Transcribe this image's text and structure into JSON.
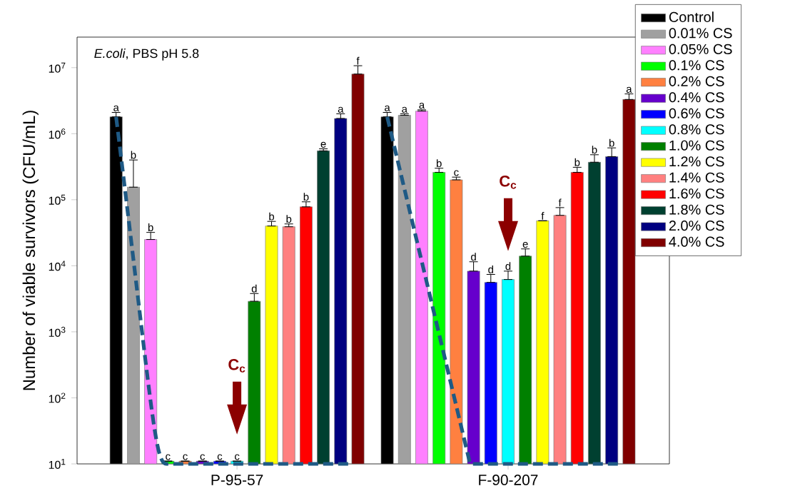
{
  "chart_data": {
    "type": "bar",
    "ylabel": "Number of viable survivors (CFU/mL)",
    "categories": [
      "P-95-57",
      "F-90-207"
    ],
    "log": "y",
    "legend": "top right",
    "ylim": [
      10,
      29000000
    ],
    "yticks": [
      {
        "value": 10,
        "label": "10$^{1}$"
      },
      {
        "value": 100,
        "label": "10$^{2}$"
      },
      {
        "value": 1000,
        "label": "10$^{3}$"
      },
      {
        "value": 10000,
        "label": "10$^{4}$"
      },
      {
        "value": 100000,
        "label": "10$^{5}$"
      },
      {
        "value": 1000000,
        "label": "10$^{6}$"
      },
      {
        "value": 10000000,
        "label": "10$^{7}$"
      }
    ],
    "annotations": [
      "*E.coli*, PBS pH 5.8",
      "C$_{c}$",
      "C$_{c}$"
    ],
    "series": [
      {
        "name": "Control",
        "color": "#000000",
        "values": [
          1800000,
          1800000
        ],
        "errors": [
          [
            1800000,
            2100000
          ],
          [
            1800000,
            2100000
          ]
        ],
        "value_labels": [
          "a",
          "a"
        ]
      },
      {
        "name": "0.01% CS",
        "color": "#a0a0a0",
        "values": [
          155000,
          1900000
        ],
        "errors": [
          [
            155000,
            400000
          ],
          [
            1900000,
            2000000
          ]
        ],
        "value_labels": [
          "b",
          "a"
        ]
      },
      {
        "name": "0.05% CS",
        "color": "#ff80ff",
        "values": [
          25000,
          2200000
        ],
        "errors": [
          [
            25000,
            32000
          ],
          [
            2200000,
            2300000
          ]
        ],
        "value_labels": [
          "b",
          "a"
        ]
      },
      {
        "name": "0.1% CS",
        "color": "#00ff00",
        "values": [
          11,
          260000
        ],
        "errors": [
          null,
          [
            260000,
            300000
          ]
        ],
        "value_labels": [
          "c",
          "b"
        ]
      },
      {
        "name": "0.2% CS",
        "color": "#ff8040",
        "values": [
          11,
          200000
        ],
        "errors": [
          null,
          [
            200000,
            220000
          ]
        ],
        "value_labels": [
          "c",
          "c"
        ]
      },
      {
        "name": "0.4% CS",
        "color": "#6600cc",
        "values": [
          11,
          8300
        ],
        "errors": [
          null,
          [
            8300,
            11500
          ]
        ],
        "value_labels": [
          "c",
          "d"
        ]
      },
      {
        "name": "0.6% CS",
        "color": "#0000ff",
        "values": [
          11,
          5600
        ],
        "errors": [
          null,
          [
            5600,
            7400
          ]
        ],
        "value_labels": [
          "c",
          "d"
        ]
      },
      {
        "name": "0.8% CS",
        "color": "#00ffff",
        "values": [
          11,
          6200
        ],
        "errors": [
          null,
          [
            6200,
            8300
          ]
        ],
        "value_labels": [
          "c",
          "d"
        ]
      },
      {
        "name": "1.0% CS",
        "color": "#008000",
        "values": [
          2900,
          14000
        ],
        "errors": [
          [
            2900,
            3800
          ],
          [
            14000,
            18000
          ]
        ],
        "value_labels": [
          "d",
          "e"
        ]
      },
      {
        "name": "1.2% CS",
        "color": "#ffff00",
        "values": [
          40000,
          48000
        ],
        "errors": [
          [
            40000,
            47000
          ],
          null
        ],
        "value_labels": [
          "b",
          "f"
        ]
      },
      {
        "name": "1.4% CS",
        "color": "#ff8080",
        "values": [
          39000,
          58000
        ],
        "errors": [
          [
            39000,
            43000
          ],
          [
            58000,
            76000
          ]
        ],
        "value_labels": [
          "b",
          "f"
        ]
      },
      {
        "name": "1.6% CS",
        "color": "#ff0000",
        "values": [
          78000,
          260000
        ],
        "errors": [
          [
            78000,
            93000
          ],
          [
            260000,
            310000
          ]
        ],
        "value_labels": [
          "b",
          "b"
        ]
      },
      {
        "name": "1.8% CS",
        "color": "#004030",
        "values": [
          550000,
          370000
        ],
        "errors": [
          [
            550000,
            590000
          ],
          [
            370000,
            480000
          ]
        ],
        "value_labels": [
          "e",
          "b"
        ]
      },
      {
        "name": "2.0% CS",
        "color": "#000080",
        "values": [
          1700000,
          450000
        ],
        "errors": [
          [
            1700000,
            2000000
          ],
          [
            450000,
            610000
          ]
        ],
        "value_labels": [
          "a",
          "b"
        ]
      },
      {
        "name": "4.0% CS",
        "color": "#800000",
        "values": [
          8000000,
          3300000
        ],
        "errors": [
          [
            8000000,
            10700000
          ],
          [
            3300000,
            4000000
          ]
        ],
        "value_labels": [
          "f",
          "a"
        ]
      }
    ]
  }
}
